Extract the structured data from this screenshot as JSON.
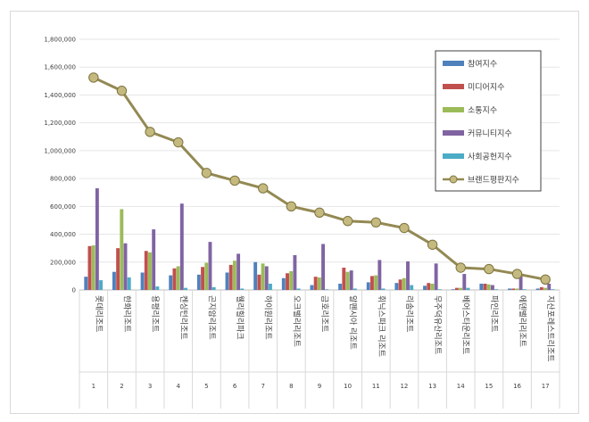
{
  "chart_data": {
    "type": "bar",
    "title": "",
    "xlabel": "",
    "ylabel": "",
    "ylim": [
      0,
      1800000
    ],
    "yticks": [
      "0",
      "200,000",
      "400,000",
      "600,000",
      "800,000",
      "1,000,000",
      "1,200,000",
      "1,400,000",
      "1,600,000",
      "1,800,000"
    ],
    "ytick_values": [
      0,
      200000,
      400000,
      600000,
      800000,
      1000000,
      1200000,
      1400000,
      1600000,
      1800000
    ],
    "grid": true,
    "legend_position": "top-right",
    "categories": [
      "롯데리조트",
      "한화리조트",
      "용평리조트",
      "켄싱턴리조트",
      "곤지암리조트",
      "웰리힐리파크",
      "하이원리조트",
      "오크밸리리조트",
      "금호리조트",
      "알펜시아 리조트",
      "휘닉스파크 리조트",
      "리솜리조트",
      "무주덕유산리조트",
      "베어스타운리조트",
      "파인리조트",
      "에덴밸리리조트",
      "지산포레스트리조트"
    ],
    "ranks": [
      "1",
      "2",
      "3",
      "4",
      "5",
      "6",
      "7",
      "8",
      "9",
      "10",
      "11",
      "12",
      "13",
      "14",
      "15",
      "16",
      "17"
    ],
    "series": [
      {
        "name": "참여지수",
        "color": "#4f81bd",
        "values": [
          95000,
          130000,
          125000,
          105000,
          110000,
          125000,
          200000,
          85000,
          35000,
          45000,
          55000,
          50000,
          30000,
          5000,
          45000,
          10000,
          10000
        ]
      },
      {
        "name": "미디어지수",
        "color": "#c0504d",
        "values": [
          315000,
          300000,
          280000,
          155000,
          165000,
          180000,
          110000,
          120000,
          95000,
          160000,
          100000,
          75000,
          50000,
          15000,
          45000,
          10000,
          20000
        ]
      },
      {
        "name": "소통지수",
        "color": "#9bbb59",
        "values": [
          320000,
          580000,
          270000,
          170000,
          195000,
          210000,
          190000,
          135000,
          90000,
          130000,
          105000,
          85000,
          45000,
          15000,
          40000,
          10000,
          15000
        ]
      },
      {
        "name": "커뮤니티지수",
        "color": "#8064a2",
        "values": [
          730000,
          335000,
          435000,
          620000,
          345000,
          260000,
          170000,
          250000,
          330000,
          140000,
          215000,
          205000,
          190000,
          115000,
          35000,
          105000,
          45000
        ]
      },
      {
        "name": "사회공헌지수",
        "color": "#4bacc6",
        "values": [
          70000,
          90000,
          25000,
          15000,
          20000,
          10000,
          45000,
          10000,
          5000,
          10000,
          10000,
          35000,
          5000,
          15000,
          5000,
          5000,
          5000
        ]
      }
    ],
    "line_series": {
      "name": "브랜드평판지수",
      "color": "#938953",
      "values": [
        1525000,
        1430000,
        1135000,
        1060000,
        840000,
        785000,
        730000,
        600000,
        555000,
        495000,
        485000,
        445000,
        325000,
        160000,
        150000,
        115000,
        75000
      ]
    }
  }
}
